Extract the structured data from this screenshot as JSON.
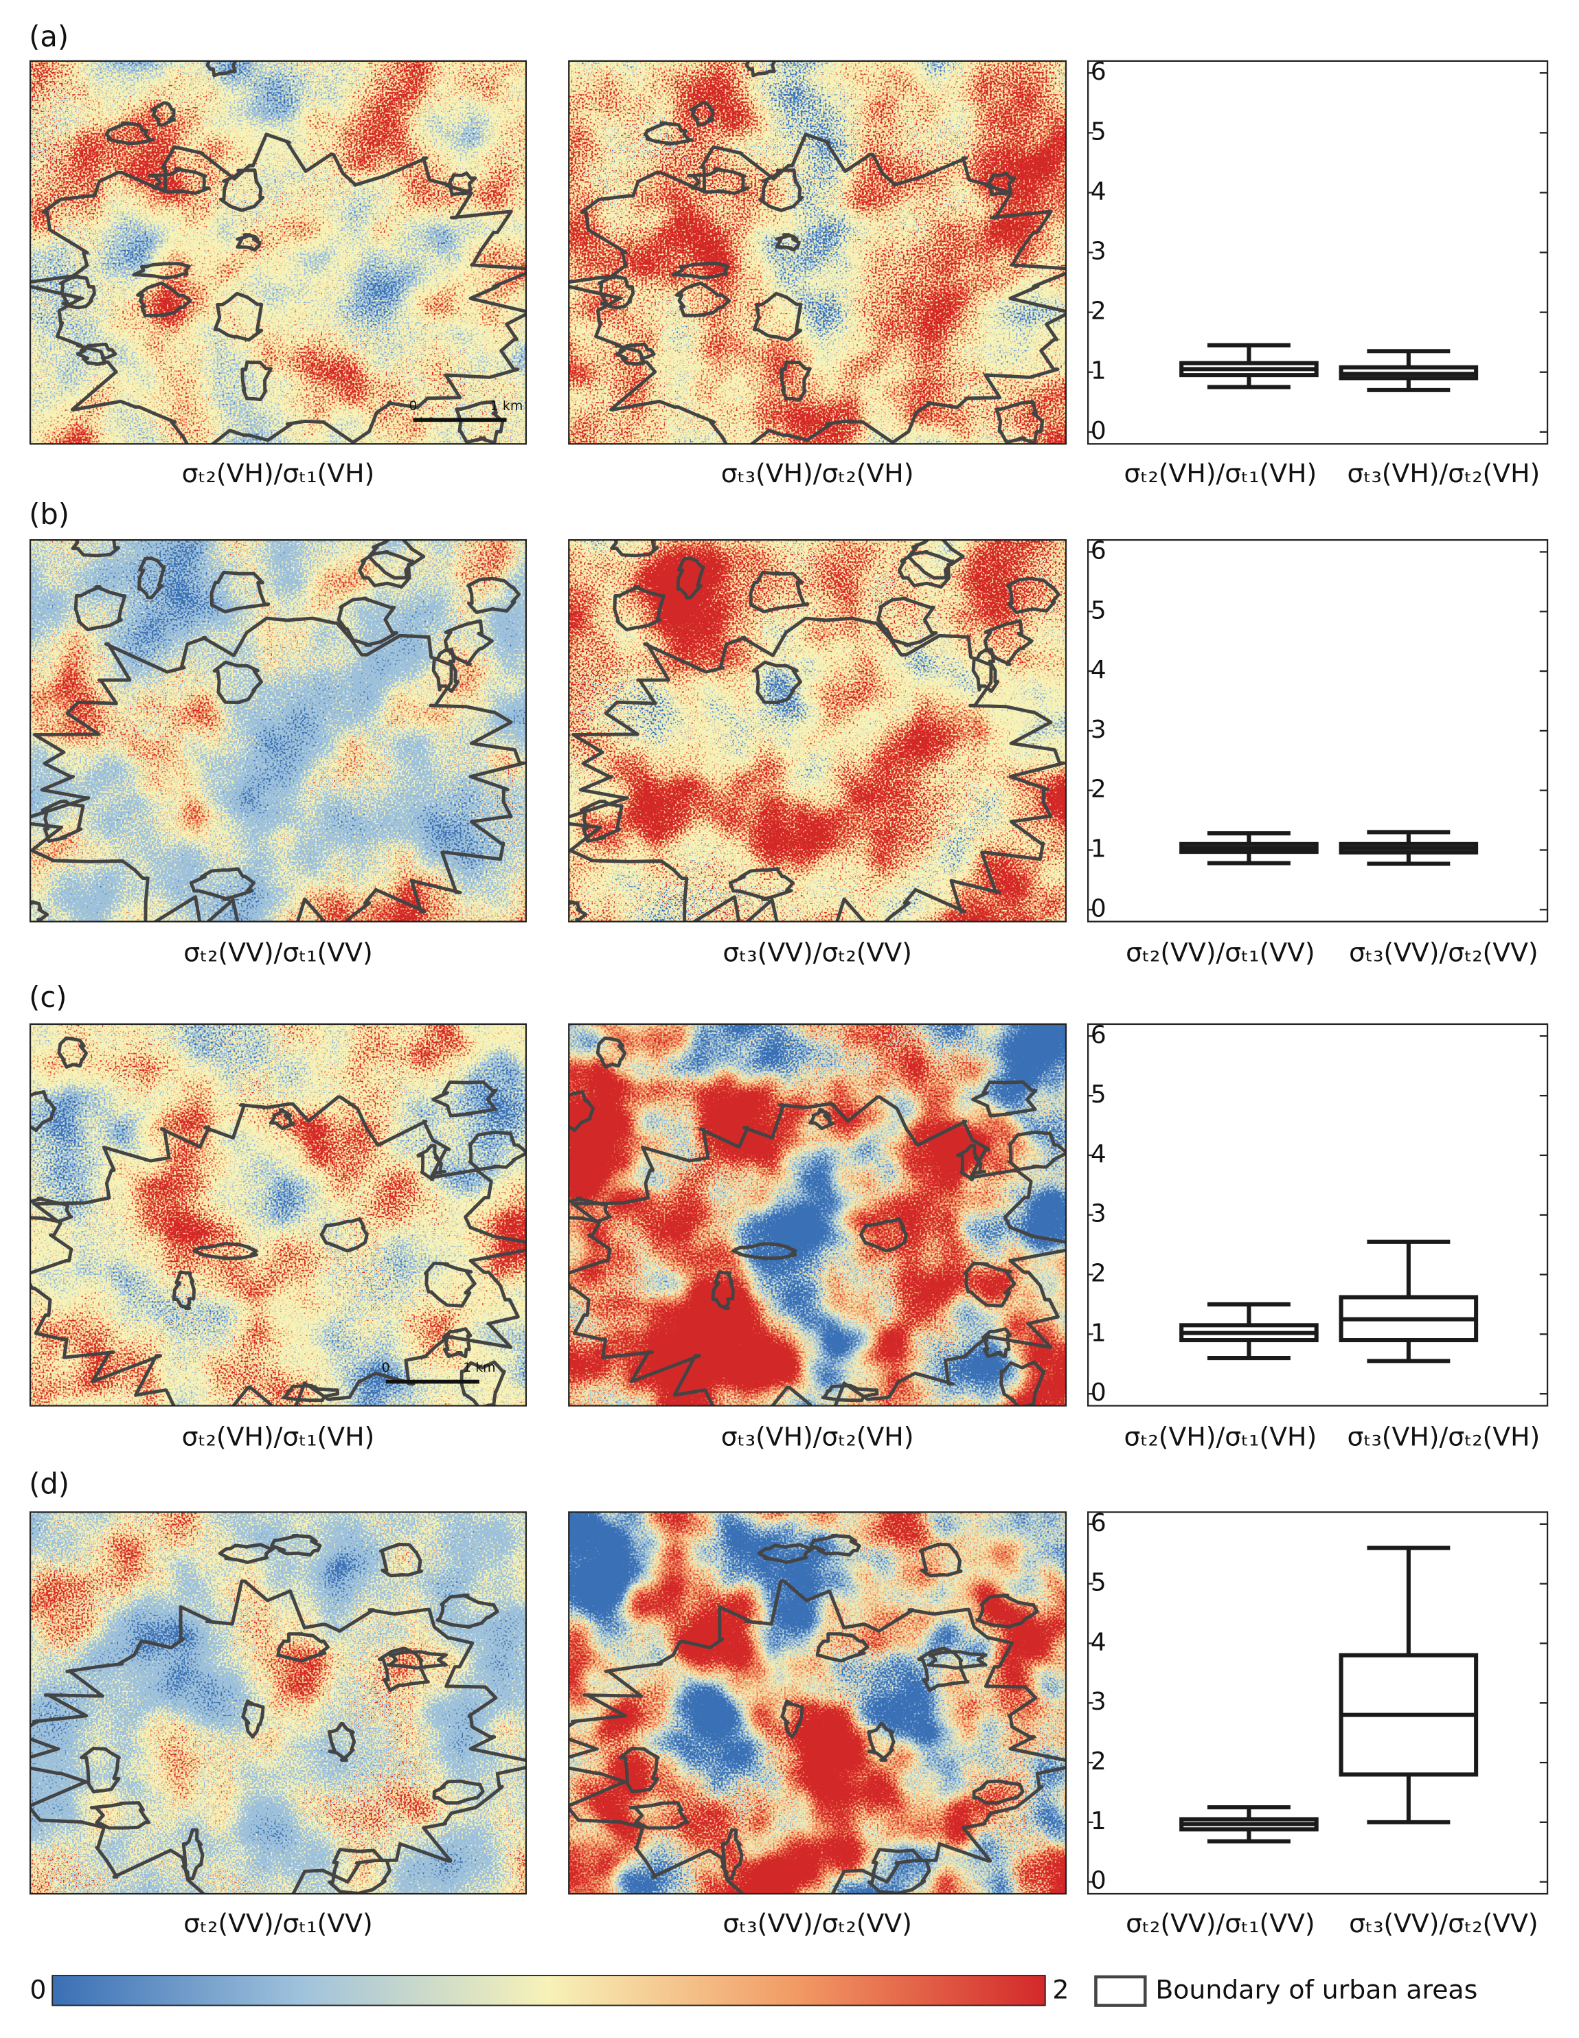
{
  "panels": [
    {
      "label": "(a)",
      "maps": [
        {
          "caption": "σₜ₂(VH)/σₜ₁(VH)",
          "scalebar": [
            "0",
            "1 km"
          ]
        },
        {
          "caption": "σₜ₃(VH)/σₜ₂(VH)"
        }
      ]
    },
    {
      "label": "(b)",
      "maps": [
        {
          "caption": "σₜ₂(VV)/σₜ₁(VV)"
        },
        {
          "caption": "σₜ₃(VV)/σₜ₂(VV)"
        }
      ]
    },
    {
      "label": "(c)",
      "maps": [
        {
          "caption": "σₜ₂(VH)/σₜ₁(VH)",
          "scalebar": [
            "0",
            "1 km"
          ]
        },
        {
          "caption": "σₜ₃(VH)/σₜ₂(VH)"
        }
      ]
    },
    {
      "label": "(d)",
      "maps": [
        {
          "caption": "σₜ₂(VV)/σₜ₁(VV)"
        },
        {
          "caption": "σₜ₃(VV)/σₜ₂(VV)"
        }
      ]
    }
  ],
  "chart_data": [
    {
      "type": "box",
      "categories": [
        "σₜ₂(VH)/σₜ₁(VH)",
        "σₜ₃(VH)/σₜ₂(VH)"
      ],
      "color": "#1a1a1a",
      "boxes": [
        {
          "whislo": 0.75,
          "q1": 0.95,
          "med": 1.05,
          "q3": 1.15,
          "whishi": 1.45
        },
        {
          "whislo": 0.7,
          "q1": 0.9,
          "med": 0.97,
          "q3": 1.08,
          "whishi": 1.35
        }
      ],
      "ylim": [
        -0.2,
        6.2
      ],
      "yticks": [
        0,
        1,
        2,
        3,
        4,
        5,
        6
      ]
    },
    {
      "type": "box",
      "categories": [
        "σₜ₂(VV)/σₜ₁(VV)",
        "σₜ₃(VV)/σₜ₂(VV)"
      ],
      "color": "#1a1a1a",
      "boxes": [
        {
          "whislo": 0.78,
          "q1": 0.97,
          "med": 1.03,
          "q3": 1.1,
          "whishi": 1.28
        },
        {
          "whislo": 0.77,
          "q1": 0.96,
          "med": 1.03,
          "q3": 1.1,
          "whishi": 1.3
        }
      ],
      "ylim": [
        -0.2,
        6.2
      ],
      "yticks": [
        0,
        1,
        2,
        3,
        4,
        5,
        6
      ]
    },
    {
      "type": "box",
      "categories": [
        "σₜ₂(VH)/σₜ₁(VH)",
        "σₜ₃(VH)/σₜ₂(VH)"
      ],
      "color": "#1a1a1a",
      "boxes": [
        {
          "whislo": 0.6,
          "q1": 0.9,
          "med": 1.02,
          "q3": 1.15,
          "whishi": 1.5
        },
        {
          "whislo": 0.55,
          "q1": 0.9,
          "med": 1.25,
          "q3": 1.62,
          "whishi": 2.55
        }
      ],
      "ylim": [
        -0.2,
        6.2
      ],
      "yticks": [
        0,
        1,
        2,
        3,
        4,
        5,
        6
      ]
    },
    {
      "type": "box",
      "categories": [
        "σₜ₂(VV)/σₜ₁(VV)",
        "σₜ₃(VV)/σₜ₂(VV)"
      ],
      "color": "#1a1a1a",
      "boxes": [
        {
          "whislo": 0.68,
          "q1": 0.88,
          "med": 0.97,
          "q3": 1.05,
          "whishi": 1.25
        },
        {
          "whislo": 1.0,
          "q1": 1.8,
          "med": 2.8,
          "q3": 3.8,
          "whishi": 5.6
        }
      ],
      "ylim": [
        -0.2,
        6.2
      ],
      "yticks": [
        0,
        1,
        2,
        3,
        4,
        5,
        6
      ]
    }
  ],
  "colorbar": {
    "range": [
      0,
      2
    ],
    "colors": [
      "#3a6fb5",
      "#9fc2dc",
      "#f7f2b8",
      "#f29a64",
      "#d3282a"
    ]
  },
  "legend": "Boundary of urban areas"
}
